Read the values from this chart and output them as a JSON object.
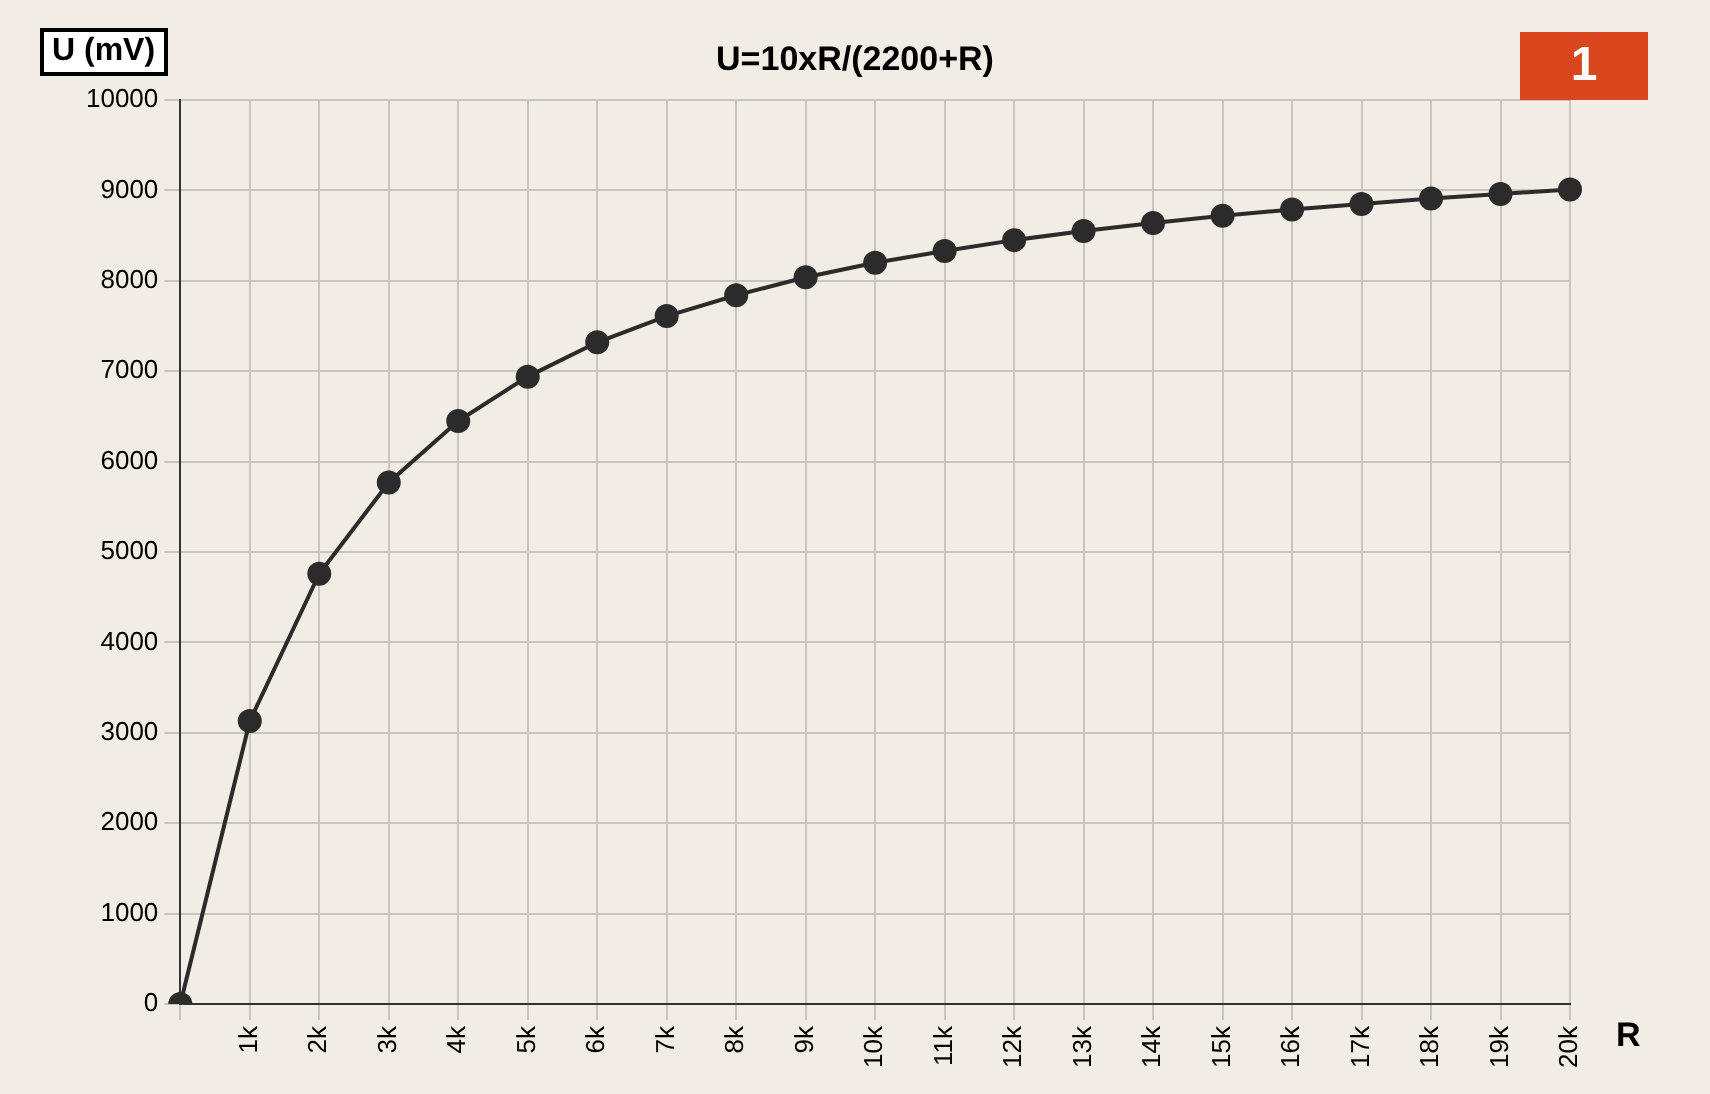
{
  "chart_data": {
    "type": "line",
    "title": "U=10xR/(2200+R)",
    "ylabel": "U (mV)",
    "xlabel": "R",
    "annotations": [
      "1"
    ],
    "categories": [
      null,
      "1k",
      "2k",
      "3k",
      "4k",
      "5k",
      "6k",
      "7k",
      "8k",
      "9k",
      "10k",
      "11k",
      "12k",
      "13k",
      "14k",
      "15k",
      "16k",
      "17k",
      "18k",
      "19k",
      "20k"
    ],
    "series": [
      {
        "color": "#2b2b2b",
        "values": [
          0,
          3130,
          4760,
          5770,
          6450,
          6940,
          7320,
          7610,
          7840,
          8040,
          8200,
          8330,
          8450,
          8550,
          8640,
          8720,
          8790,
          8850,
          8910,
          8960,
          9010
        ]
      }
    ],
    "ylim": [
      0,
      10000
    ],
    "yticks": [
      0,
      1000,
      2000,
      3000,
      4000,
      5000,
      6000,
      7000,
      8000,
      9000,
      10000
    ],
    "grid": true,
    "legend": false,
    "marker": "circle",
    "line_style": "solid"
  }
}
